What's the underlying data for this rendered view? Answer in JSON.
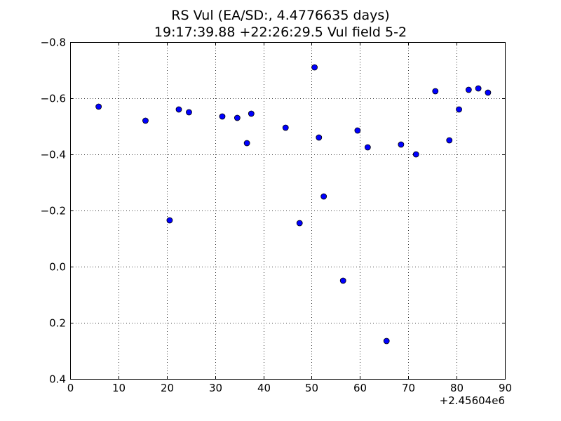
{
  "chart_data": {
    "type": "scatter",
    "title_lines": [
      "RS Vul (EA/SD:, 4.4776635 days)",
      "19:17:39.88 +22:26:29.5 Vul field 5-2"
    ],
    "xlabel": "",
    "ylabel": "",
    "x_offset_label": "+2.45604e6",
    "xlim": [
      0,
      90
    ],
    "ylim": [
      0.4,
      -0.8
    ],
    "y_inverted": true,
    "grid": true,
    "grid_style": "dotted",
    "marker_color": "#0000ff",
    "marker_edge_color": "#000000",
    "x_ticks": [
      0,
      10,
      20,
      30,
      40,
      50,
      60,
      70,
      80,
      90
    ],
    "x_tick_labels": [
      "0",
      "10",
      "20",
      "30",
      "40",
      "50",
      "60",
      "70",
      "80",
      "90"
    ],
    "y_ticks": [
      -0.8,
      -0.6,
      -0.4,
      -0.2,
      0.0,
      0.2,
      0.4
    ],
    "y_tick_labels": [
      "−0.8",
      "−0.6",
      "−0.4",
      "−0.2",
      "0.0",
      "0.2",
      "0.4"
    ],
    "points": [
      {
        "x": 5.9,
        "y": -0.57
      },
      {
        "x": 15.6,
        "y": -0.52
      },
      {
        "x": 20.6,
        "y": -0.165
      },
      {
        "x": 22.5,
        "y": -0.56
      },
      {
        "x": 24.6,
        "y": -0.55
      },
      {
        "x": 31.5,
        "y": -0.535
      },
      {
        "x": 34.6,
        "y": -0.53
      },
      {
        "x": 36.6,
        "y": -0.44
      },
      {
        "x": 37.5,
        "y": -0.545
      },
      {
        "x": 44.6,
        "y": -0.495
      },
      {
        "x": 47.5,
        "y": -0.155
      },
      {
        "x": 50.6,
        "y": -0.71
      },
      {
        "x": 51.5,
        "y": -0.46
      },
      {
        "x": 52.5,
        "y": -0.25
      },
      {
        "x": 56.5,
        "y": 0.05
      },
      {
        "x": 59.5,
        "y": -0.485
      },
      {
        "x": 61.6,
        "y": -0.425
      },
      {
        "x": 65.5,
        "y": 0.265
      },
      {
        "x": 68.5,
        "y": -0.435
      },
      {
        "x": 71.6,
        "y": -0.4
      },
      {
        "x": 75.6,
        "y": -0.625
      },
      {
        "x": 78.5,
        "y": -0.45
      },
      {
        "x": 80.5,
        "y": -0.56
      },
      {
        "x": 82.5,
        "y": -0.63
      },
      {
        "x": 84.5,
        "y": -0.635
      },
      {
        "x": 86.5,
        "y": -0.62
      }
    ]
  }
}
